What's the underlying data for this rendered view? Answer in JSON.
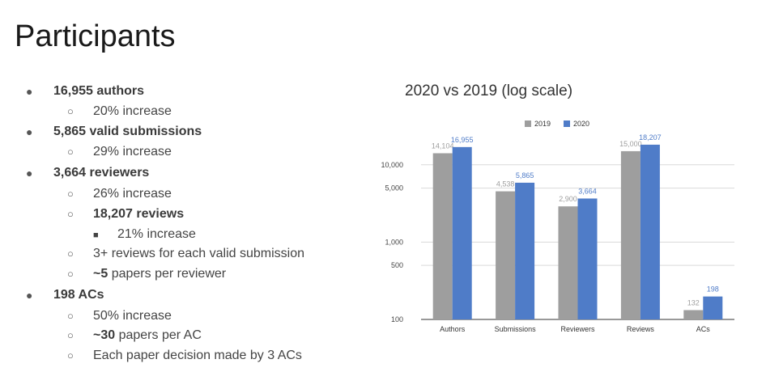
{
  "slide": {
    "title": "Participants",
    "bullets": [
      {
        "level": 1,
        "marker": "●",
        "bold": "16,955 authors",
        "rest": ""
      },
      {
        "level": 2,
        "marker": "○",
        "bold": "",
        "rest": "20% increase"
      },
      {
        "level": 1,
        "marker": "●",
        "bold": "5,865 valid submissions",
        "rest": ""
      },
      {
        "level": 2,
        "marker": "○",
        "bold": "",
        "rest": "29% increase"
      },
      {
        "level": 1,
        "marker": "●",
        "bold": "3,664 reviewers",
        "rest": ""
      },
      {
        "level": 2,
        "marker": "○",
        "bold": "",
        "rest": "26% increase"
      },
      {
        "level": 2,
        "marker": "○",
        "bold": "18,207 reviews",
        "rest": ""
      },
      {
        "level": 3,
        "marker": "■",
        "bold": "",
        "rest": "21% increase"
      },
      {
        "level": 2,
        "marker": "○",
        "bold": "",
        "rest": "3+ reviews for each valid submission"
      },
      {
        "level": 2,
        "marker": "○",
        "bold": "~5",
        "rest": " papers per reviewer"
      },
      {
        "level": 1,
        "marker": "●",
        "bold": "198 ACs",
        "rest": ""
      },
      {
        "level": 2,
        "marker": "○",
        "bold": "",
        "rest": "50% increase"
      },
      {
        "level": 2,
        "marker": "○",
        "bold": "~30",
        "rest": " papers per AC"
      },
      {
        "level": 2,
        "marker": "○",
        "bold": "",
        "rest": "Each paper decision made by 3 ACs"
      }
    ]
  },
  "chart_data": {
    "type": "bar",
    "title": "2020 vs 2019 (log scale)",
    "scale": "log",
    "categories": [
      "Authors",
      "Submissions",
      "Reviewers",
      "Reviews",
      "ACs"
    ],
    "series": [
      {
        "name": "2019",
        "color": "#9e9e9e",
        "label_color": "#9e9e9e",
        "values": [
          14104,
          4538,
          2900,
          15000,
          132
        ],
        "labels": [
          "14,104",
          "4,538",
          "2,900",
          "15,000",
          "132"
        ]
      },
      {
        "name": "2020",
        "color": "#4f7cc8",
        "label_color": "#4f7cc8",
        "values": [
          16955,
          5865,
          3664,
          18207,
          198
        ],
        "labels": [
          "16,955",
          "5,865",
          "3,664",
          "18,207",
          "198"
        ]
      }
    ],
    "yticks": [
      100,
      500,
      1000,
      5000,
      10000
    ],
    "ytick_labels": [
      "100",
      "500",
      "1,000",
      "5,000",
      "10,000"
    ],
    "ylim": [
      100,
      20000
    ],
    "grid": true,
    "legend": "top-center"
  }
}
